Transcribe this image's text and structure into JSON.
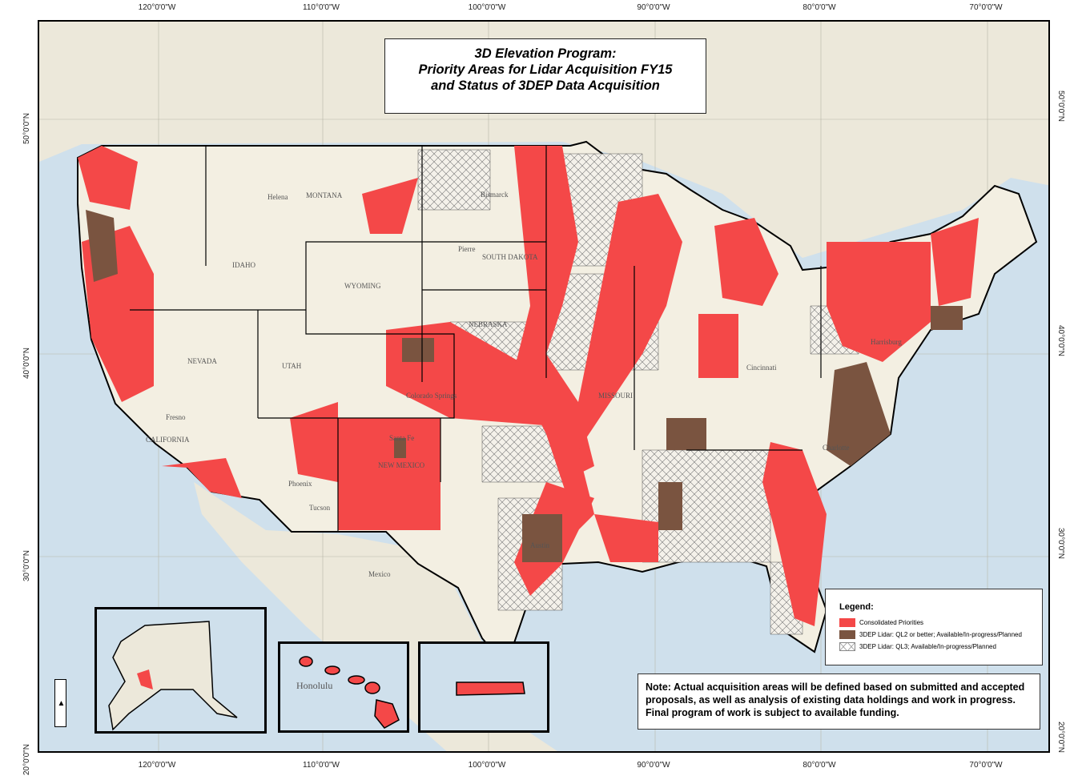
{
  "title": {
    "line1": "3D Elevation Program:",
    "line2": "Priority Areas for Lidar Acquisition FY15",
    "line3": "and Status of 3DEP Data Acquisition"
  },
  "graticule": {
    "longitudes": [
      "120°0'0\"W",
      "110°0'0\"W",
      "100°0'0\"W",
      "90°0'0\"W",
      "80°0'0\"W",
      "70°0'0\"W"
    ],
    "latitudes": [
      "50°0'0\"N",
      "40°0'0\"N",
      "30°0'0\"N",
      "20°0'0\"N"
    ]
  },
  "legend": {
    "heading": "Legend:",
    "items": [
      {
        "label": "Consolidated Priorities",
        "color": "#f44848"
      },
      {
        "label": "3DEP Lidar: QL2 or better; Available/In-progress/Planned",
        "color": "#7a5440"
      },
      {
        "label": "3DEP Lidar: QL3; Available/In-progress/Planned",
        "color": "hatch"
      }
    ]
  },
  "note": "Note: Actual acquisition areas will be defined based on submitted and accepted proposals, as well as analysis of existing data holdings and work in progress.  Final program of work is subject to available funding.",
  "basemap_labels": {
    "montana": "MONTANA",
    "wyoming": "WYOMING",
    "nevada": "NEVADA",
    "utah": "UTAH",
    "california": "CALIFORNIA",
    "nebraska": "NEBRASKA",
    "missouri": "MISSOURI",
    "south_dakota": "SOUTH DAKOTA",
    "idaho": "IDAHO",
    "new_mexico": "NEW MEXICO",
    "mexico": "Mexico",
    "honolulu": "Honolulu",
    "phoenix": "Phoenix",
    "tucson": "Tucson",
    "helena": "Helena",
    "pierre": "Pierre",
    "bismarck": "Bismarck",
    "austin": "Austin",
    "colorado_springs": "Colorado Springs",
    "santa_fe": "Santa Fe",
    "fresno": "Fresno",
    "charlotte": "Charlotte",
    "harrisburg": "Harrisburg",
    "cincinnati": "Cincinnati"
  },
  "colors": {
    "priority": "#f44848",
    "ql2": "#7a5440",
    "land": "#f3efe2",
    "water": "#cfe0ec"
  }
}
